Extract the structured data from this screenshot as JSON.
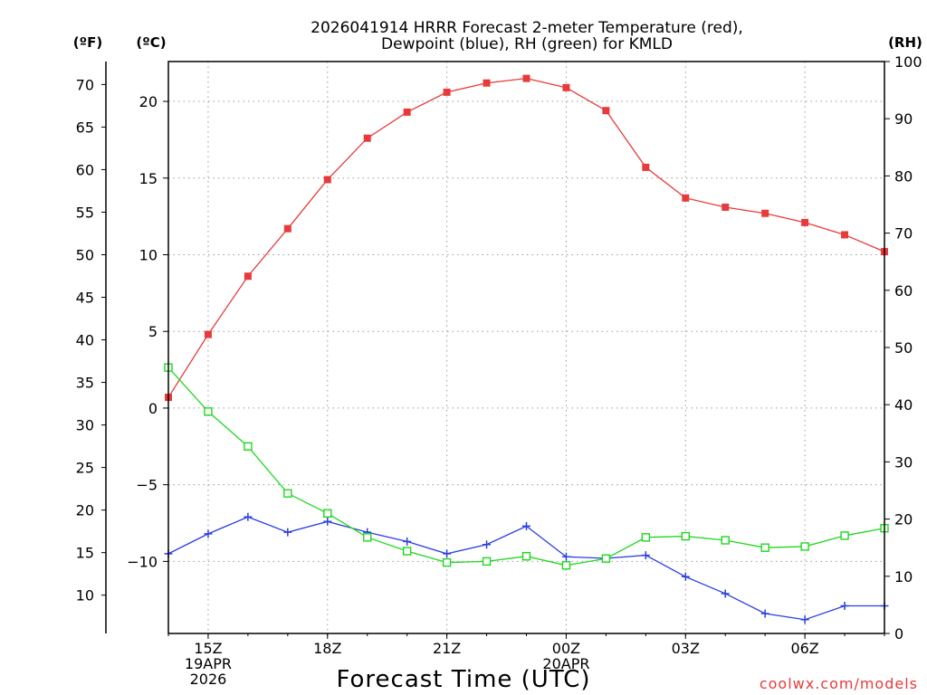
{
  "chart_data": {
    "type": "line",
    "title_line1": "2026041914 HRRR Forecast 2-meter Temperature (red),",
    "title_line2": "Dewpoint (blue), RH (green) for KMLD",
    "xlabel": "Forecast Time (UTC)",
    "watermark": "coolwx.com/models",
    "axis_unit_f": "(ºF)",
    "axis_unit_c": "(ºC)",
    "axis_unit_rh": "(RH)",
    "x_hours": [
      14,
      15,
      16,
      17,
      18,
      19,
      20,
      21,
      22,
      23,
      24,
      25,
      26,
      27,
      28,
      29,
      30,
      31,
      32
    ],
    "x_ticks": [
      {
        "hour": 15,
        "lines": [
          "15Z",
          "19APR",
          "2026"
        ]
      },
      {
        "hour": 18,
        "lines": [
          "18Z"
        ]
      },
      {
        "hour": 21,
        "lines": [
          "21Z"
        ]
      },
      {
        "hour": 24,
        "lines": [
          "00Z",
          "20APR"
        ]
      },
      {
        "hour": 27,
        "lines": [
          "03Z"
        ]
      },
      {
        "hour": 30,
        "lines": [
          "06Z"
        ]
      }
    ],
    "xlim": [
      14,
      32
    ],
    "c_axis": {
      "range": [
        -14.7,
        22.6
      ],
      "ticks": [
        20,
        15,
        10,
        5,
        0,
        -5,
        -10
      ],
      "tick_labels": [
        "20",
        "15",
        "10",
        "5",
        "0",
        "−5",
        "−10"
      ]
    },
    "f_axis": {
      "range": [
        5.5,
        72.7
      ],
      "ticks": [
        70,
        65,
        60,
        55,
        50,
        45,
        40,
        35,
        30,
        25,
        20,
        15,
        10
      ]
    },
    "rh_axis": {
      "range": [
        0,
        100
      ],
      "ticks": [
        0,
        10,
        20,
        30,
        40,
        50,
        60,
        70,
        80,
        90,
        100
      ]
    },
    "series": [
      {
        "name": "Temperature",
        "unit": "C",
        "color": "#e83a3a",
        "marker": "filled-square",
        "values": [
          0.7,
          4.8,
          8.6,
          11.7,
          14.9,
          17.6,
          19.3,
          20.6,
          21.2,
          21.5,
          20.9,
          19.4,
          15.7,
          13.7,
          13.1,
          12.7,
          12.1,
          11.3,
          10.2
        ]
      },
      {
        "name": "Dewpoint",
        "unit": "C",
        "color": "#2a3fe0",
        "marker": "plus",
        "values": [
          -9.5,
          -8.2,
          -7.1,
          -8.1,
          -7.4,
          -8.1,
          -8.7,
          -9.5,
          -8.9,
          -7.7,
          -9.7,
          -9.8,
          -9.6,
          -11.0,
          -12.1,
          -13.4,
          -13.8,
          -12.9,
          -12.9
        ]
      },
      {
        "name": "RH",
        "unit": "%",
        "color": "#1ed81e",
        "marker": "open-square",
        "values": [
          46.5,
          38.8,
          32.7,
          24.5,
          21.0,
          16.8,
          14.4,
          12.4,
          12.6,
          13.5,
          11.9,
          13.1,
          16.8,
          17.0,
          16.3,
          15.0,
          15.2,
          17.1,
          18.4
        ]
      }
    ]
  }
}
